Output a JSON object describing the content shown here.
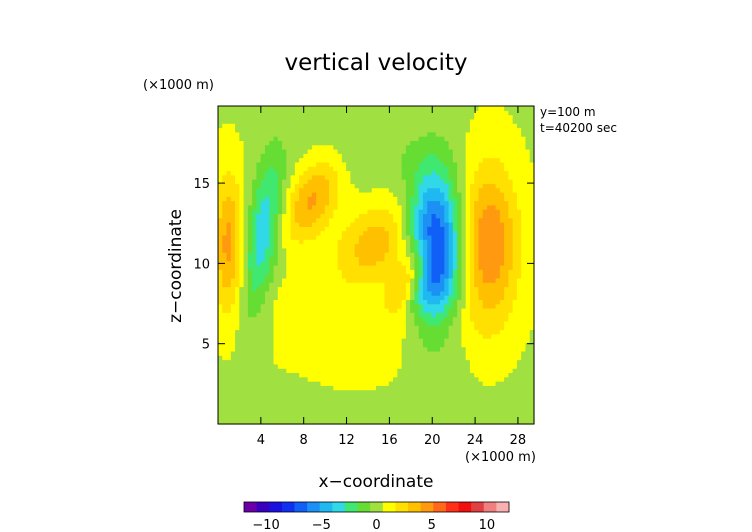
{
  "chart_data": {
    "type": "heatmap",
    "title": "vertical velocity",
    "xlabel": "x−coordinate",
    "ylabel": "z−coordinate",
    "x_unit": "(×1000 m)",
    "y_unit": "(×1000 m)",
    "info": [
      "y=100 m",
      "t=40200 sec"
    ],
    "xlim": [
      0,
      29.5
    ],
    "ylim": [
      0,
      19.8
    ],
    "xticks": [
      4,
      8,
      12,
      16,
      20,
      24,
      28
    ],
    "yticks": [
      5,
      10,
      15
    ],
    "xtick_labels": [
      "4",
      "8",
      "12",
      "16",
      "20",
      "24",
      "28"
    ],
    "ytick_labels": [
      "5",
      "10",
      "15"
    ],
    "colorbar": {
      "range": [
        -12,
        12
      ],
      "labels": [
        "−10",
        "−5",
        "0",
        "5",
        "10"
      ],
      "label_values": [
        -10,
        -5,
        0,
        5,
        10
      ],
      "colors": [
        "#6a00a8",
        "#3a00c0",
        "#1a10e0",
        "#1030f0",
        "#1060f8",
        "#1c90f4",
        "#20b8f0",
        "#30d8e8",
        "#40e870",
        "#66dd33",
        "#a0e040",
        "#ffff00",
        "#ffe000",
        "#ffc000",
        "#ff9a10",
        "#ff6818",
        "#ff3018",
        "#f01010",
        "#e04040",
        "#f08080",
        "#f8b0b0"
      ]
    },
    "features": [
      {
        "x": 1.0,
        "z": 11.2,
        "amp": 4.0,
        "sx": 1.0,
        "sz": 3.0,
        "tilt": 0
      },
      {
        "x": 4.2,
        "z": 12.0,
        "amp": -4.2,
        "sx": 1.1,
        "sz": 3.4,
        "tilt": 0.2
      },
      {
        "x": 8.8,
        "z": 14.0,
        "amp": 3.8,
        "sx": 1.6,
        "sz": 1.8,
        "tilt": 0.5
      },
      {
        "x": 14.8,
        "z": 11.2,
        "amp": 3.2,
        "sx": 2.6,
        "sz": 1.8,
        "tilt": 0.5
      },
      {
        "x": 18.0,
        "z": 9.3,
        "amp": 3.6,
        "sx": 1.1,
        "sz": 1.6,
        "tilt": 0.6
      },
      {
        "x": 20.2,
        "z": 11.0,
        "amp": -9.0,
        "sx": 1.7,
        "sz": 3.3,
        "tilt": 0
      },
      {
        "x": 25.3,
        "z": 11.2,
        "amp": 4.8,
        "sx": 1.9,
        "sz": 3.4,
        "tilt": 0
      },
      {
        "x": 8.0,
        "z": 7.6,
        "amp": 0.9,
        "sx": 2.5,
        "sz": 1.0,
        "tilt": 0
      },
      {
        "x": 14.0,
        "z": 16.8,
        "amp": -0.9,
        "sx": 3.5,
        "sz": 1.3,
        "tilt": 0
      },
      {
        "x": 11.5,
        "z": 4.4,
        "amp": 0.8,
        "sx": 4.0,
        "sz": 1.4,
        "tilt": 0
      },
      {
        "x": 20.0,
        "z": 6.2,
        "amp": 0.8,
        "sx": 3.5,
        "sz": 1.0,
        "tilt": 0
      },
      {
        "x": 5.0,
        "z": 1.4,
        "amp": -0.8,
        "sx": 3.0,
        "sz": 1.0,
        "tilt": 0
      }
    ]
  }
}
